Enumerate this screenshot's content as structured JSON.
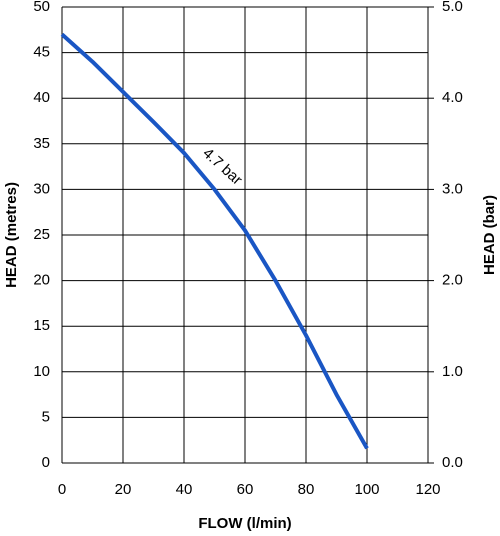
{
  "chart_data": {
    "type": "line",
    "x_label": "FLOW (l/min)",
    "y_label": "HEAD (metres)",
    "y2_label": "HEAD (bar)",
    "x": [
      0,
      10,
      20,
      30,
      40,
      50,
      60,
      70,
      80,
      90,
      100
    ],
    "values": [
      47,
      44,
      40.7,
      37.4,
      34,
      30,
      25.5,
      20,
      14,
      7.5,
      1.6
    ],
    "color": "#1a56c4",
    "annotation": "4.7 bar",
    "xlim": [
      0,
      120
    ],
    "xticks": [
      0,
      20,
      40,
      60,
      80,
      100,
      120
    ],
    "ylim": [
      0,
      50
    ],
    "yticks": [
      0,
      5,
      10,
      15,
      20,
      25,
      30,
      35,
      40,
      45,
      50
    ],
    "y2lim": [
      0,
      5
    ],
    "y2ticks": [
      {
        "value": 0,
        "label": "0.0"
      },
      {
        "value": 1,
        "label": "1.0"
      },
      {
        "value": 2,
        "label": "2.0"
      },
      {
        "value": 3,
        "label": "3.0"
      },
      {
        "value": 4,
        "label": "4.0"
      },
      {
        "value": 5,
        "label": "5.0"
      }
    ],
    "grid": true
  }
}
